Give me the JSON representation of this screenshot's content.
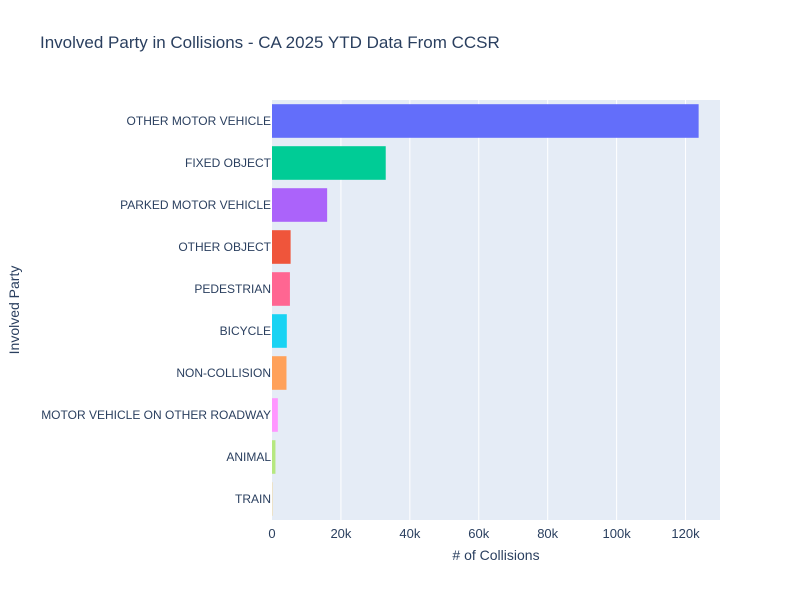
{
  "chart_data": {
    "type": "bar",
    "orientation": "horizontal",
    "title": "Involved Party in Collisions - CA 2025 YTD Data From CCSR",
    "xlabel": "# of Collisions",
    "ylabel": "Involved Party",
    "xlim": [
      0,
      130000
    ],
    "x_ticks": [
      {
        "value": 0,
        "label": "0"
      },
      {
        "value": 20000,
        "label": "20k"
      },
      {
        "value": 40000,
        "label": "40k"
      },
      {
        "value": 60000,
        "label": "60k"
      },
      {
        "value": 80000,
        "label": "80k"
      },
      {
        "value": 100000,
        "label": "100k"
      },
      {
        "value": 120000,
        "label": "120k"
      }
    ],
    "grid": true,
    "legend": "none",
    "categories": [
      "OTHER MOTOR VEHICLE",
      "FIXED OBJECT",
      "PARKED MOTOR VEHICLE",
      "OTHER OBJECT",
      "PEDESTRIAN",
      "BICYCLE",
      "NON-COLLISION",
      "MOTOR VEHICLE ON OTHER ROADWAY",
      "ANIMAL",
      "TRAIN"
    ],
    "values": [
      123800,
      33000,
      16000,
      5400,
      5200,
      4300,
      4200,
      1700,
      1000,
      80
    ],
    "colors": [
      "#636efa",
      "#00cc96",
      "#ab63fa",
      "#ef553b",
      "#ff6692",
      "#19d3f3",
      "#ffa15a",
      "#ff97ff",
      "#b6e880",
      "#fecb52"
    ],
    "plot_background": "#e5ecf6",
    "grid_color": "#ffffff"
  }
}
